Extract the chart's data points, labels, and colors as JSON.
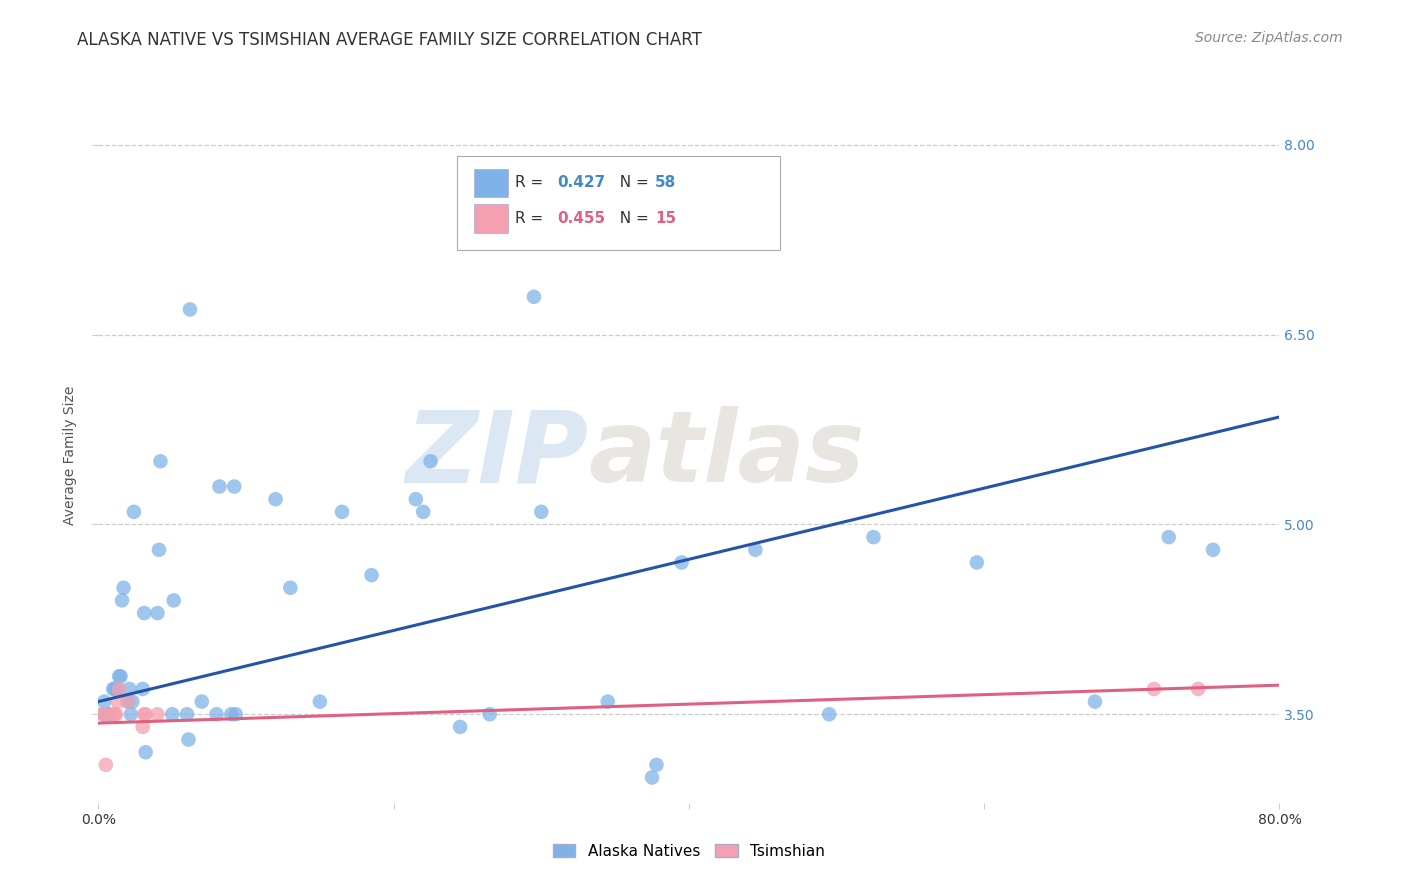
{
  "title": "ALASKA NATIVE VS TSIMSHIAN AVERAGE FAMILY SIZE CORRELATION CHART",
  "source": "Source: ZipAtlas.com",
  "ylabel": "Average Family Size",
  "xlim": [
    0.0,
    0.8
  ],
  "ylim": [
    2.8,
    8.3
  ],
  "yticks": [
    3.5,
    5.0,
    6.5,
    8.0
  ],
  "xticks": [
    0.0,
    0.2,
    0.4,
    0.6,
    0.8
  ],
  "background_color": "#ffffff",
  "grid_color": "#cccccc",
  "alaska_native_x": [
    0.003,
    0.004,
    0.005,
    0.006,
    0.007,
    0.01,
    0.011,
    0.012,
    0.013,
    0.014,
    0.015,
    0.016,
    0.017,
    0.02,
    0.021,
    0.022,
    0.023,
    0.024,
    0.03,
    0.031,
    0.032,
    0.04,
    0.041,
    0.042,
    0.05,
    0.051,
    0.06,
    0.061,
    0.062,
    0.07,
    0.08,
    0.082,
    0.09,
    0.092,
    0.093,
    0.12,
    0.13,
    0.15,
    0.165,
    0.185,
    0.215,
    0.22,
    0.225,
    0.245,
    0.265,
    0.295,
    0.3,
    0.345,
    0.375,
    0.378,
    0.395,
    0.445,
    0.495,
    0.525,
    0.595,
    0.675,
    0.725,
    0.755
  ],
  "alaska_native_y": [
    3.5,
    3.6,
    3.5,
    3.5,
    3.5,
    3.7,
    3.7,
    3.7,
    3.7,
    3.8,
    3.8,
    4.4,
    4.5,
    3.6,
    3.7,
    3.5,
    3.6,
    5.1,
    3.7,
    4.3,
    3.2,
    4.3,
    4.8,
    5.5,
    3.5,
    4.4,
    3.5,
    3.3,
    6.7,
    3.6,
    3.5,
    5.3,
    3.5,
    5.3,
    3.5,
    5.2,
    4.5,
    3.6,
    5.1,
    4.6,
    5.2,
    5.1,
    5.5,
    3.4,
    3.5,
    6.8,
    5.1,
    3.6,
    3.0,
    3.1,
    4.7,
    4.8,
    3.5,
    4.9,
    4.7,
    3.6,
    4.9,
    4.8
  ],
  "alaska_scatter_color": "#7FB3E8",
  "alaska_line_color": "#2255AA",
  "alaska_R": 0.427,
  "alaska_N": 58,
  "alaska_line_x0": 0.0,
  "alaska_line_y0": 3.6,
  "alaska_line_x1": 0.8,
  "alaska_line_y1": 5.85,
  "tsimshian_x": [
    0.003,
    0.004,
    0.005,
    0.01,
    0.011,
    0.012,
    0.013,
    0.014,
    0.02,
    0.03,
    0.031,
    0.032,
    0.04,
    0.715,
    0.745
  ],
  "tsimshian_y": [
    3.5,
    3.5,
    3.1,
    3.5,
    3.5,
    3.5,
    3.6,
    3.7,
    3.6,
    3.4,
    3.5,
    3.5,
    3.5,
    3.7,
    3.7
  ],
  "tsimshian_scatter_color": "#F4A0B0",
  "tsimshian_line_color": "#E06080",
  "tsimshian_R": 0.455,
  "tsimshian_N": 15,
  "tsimshian_line_x0": 0.0,
  "tsimshian_line_y0": 3.43,
  "tsimshian_line_x1": 0.8,
  "tsimshian_line_y1": 3.73,
  "legend_alaska_label": "Alaska Natives",
  "legend_tsimshian_label": "Tsimshian",
  "watermark_zip": "ZIP",
  "watermark_atlas": "atlas",
  "title_fontsize": 12,
  "axis_label_fontsize": 10,
  "tick_fontsize": 10,
  "legend_fontsize": 11,
  "source_fontsize": 10
}
